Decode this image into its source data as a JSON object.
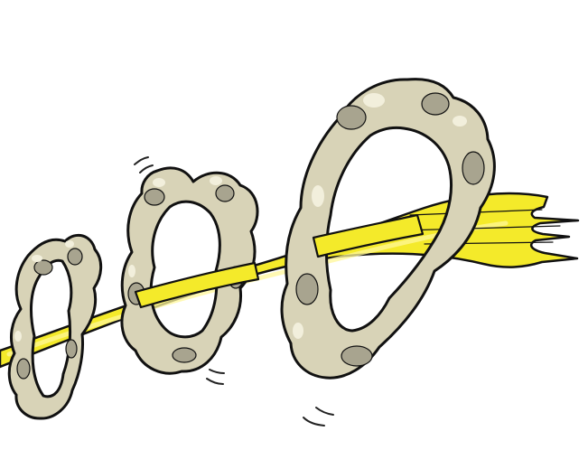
{
  "scene": {
    "background": "#ffffff",
    "outline": "#111111",
    "streak": {
      "fill": "#f4ea2a",
      "highlight": "#fff79a"
    },
    "rings": {
      "fill": "#d8d3b7",
      "shadow": "#a8a48f",
      "highlight": "#f2efdc",
      "count": 3
    },
    "motion_lines": {
      "color": "#222222",
      "count": 6
    }
  }
}
